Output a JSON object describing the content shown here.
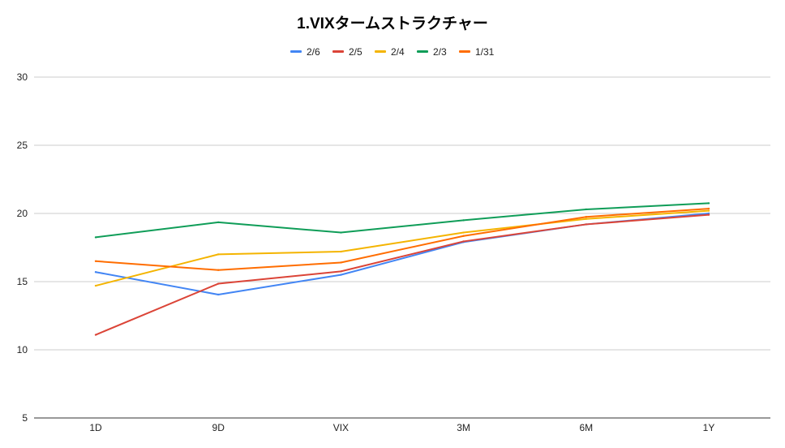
{
  "chart_data": {
    "type": "line",
    "title": "1.VIXタームストラクチャー",
    "categories": [
      "1D",
      "9D",
      "VIX",
      "3M",
      "6M",
      "1Y"
    ],
    "ylim": [
      5,
      30
    ],
    "yticks": [
      "5",
      "10",
      "15",
      "20",
      "25",
      "30"
    ],
    "grid": true,
    "legend_position": "top",
    "series": [
      {
        "name": "2/6",
        "color": "#4285f4",
        "values": [
          15.7,
          14.05,
          15.5,
          17.9,
          19.2,
          20.0
        ]
      },
      {
        "name": "2/5",
        "color": "#db4437",
        "values": [
          11.1,
          14.85,
          15.75,
          17.95,
          19.2,
          19.9
        ]
      },
      {
        "name": "2/4",
        "color": "#f4b400",
        "values": [
          14.7,
          17.0,
          17.2,
          18.6,
          19.6,
          20.2
        ]
      },
      {
        "name": "2/3",
        "color": "#0f9d58",
        "values": [
          18.25,
          19.35,
          18.6,
          19.5,
          20.3,
          20.75
        ]
      },
      {
        "name": "1/31",
        "color": "#ff6d00",
        "values": [
          16.5,
          15.85,
          16.4,
          18.35,
          19.75,
          20.35
        ]
      }
    ]
  }
}
